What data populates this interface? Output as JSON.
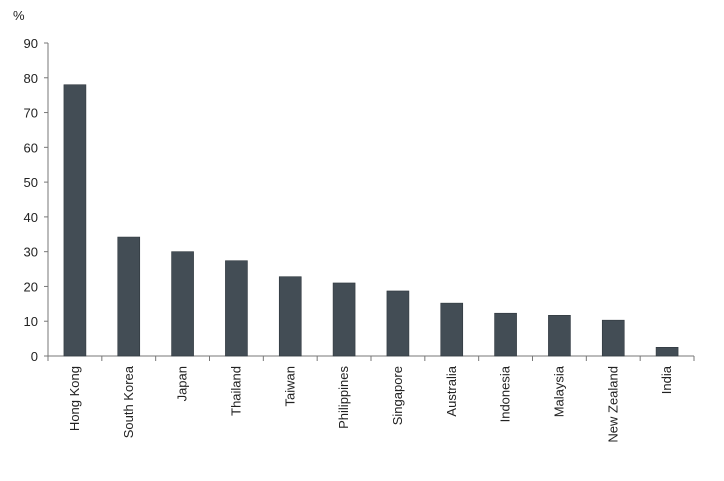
{
  "chart_data": {
    "type": "bar",
    "title": "",
    "xlabel": "",
    "ylabel": "%",
    "ylim": [
      0,
      90
    ],
    "yticks": [
      0,
      10,
      20,
      30,
      40,
      50,
      60,
      70,
      80,
      90
    ],
    "grid": false,
    "categories": [
      "Hong Kong",
      "South Korea",
      "Japan",
      "Thailand",
      "Taiwan",
      "Philippines",
      "Singapore",
      "Australia",
      "Indonesia",
      "Malaysia",
      "New Zealand",
      "India"
    ],
    "values": [
      78,
      34.2,
      30,
      27.4,
      22.8,
      21,
      18.7,
      15.2,
      12.3,
      11.7,
      10.3,
      2.5
    ],
    "colors": {
      "bar": "#434d55",
      "axis": "#777777"
    }
  }
}
